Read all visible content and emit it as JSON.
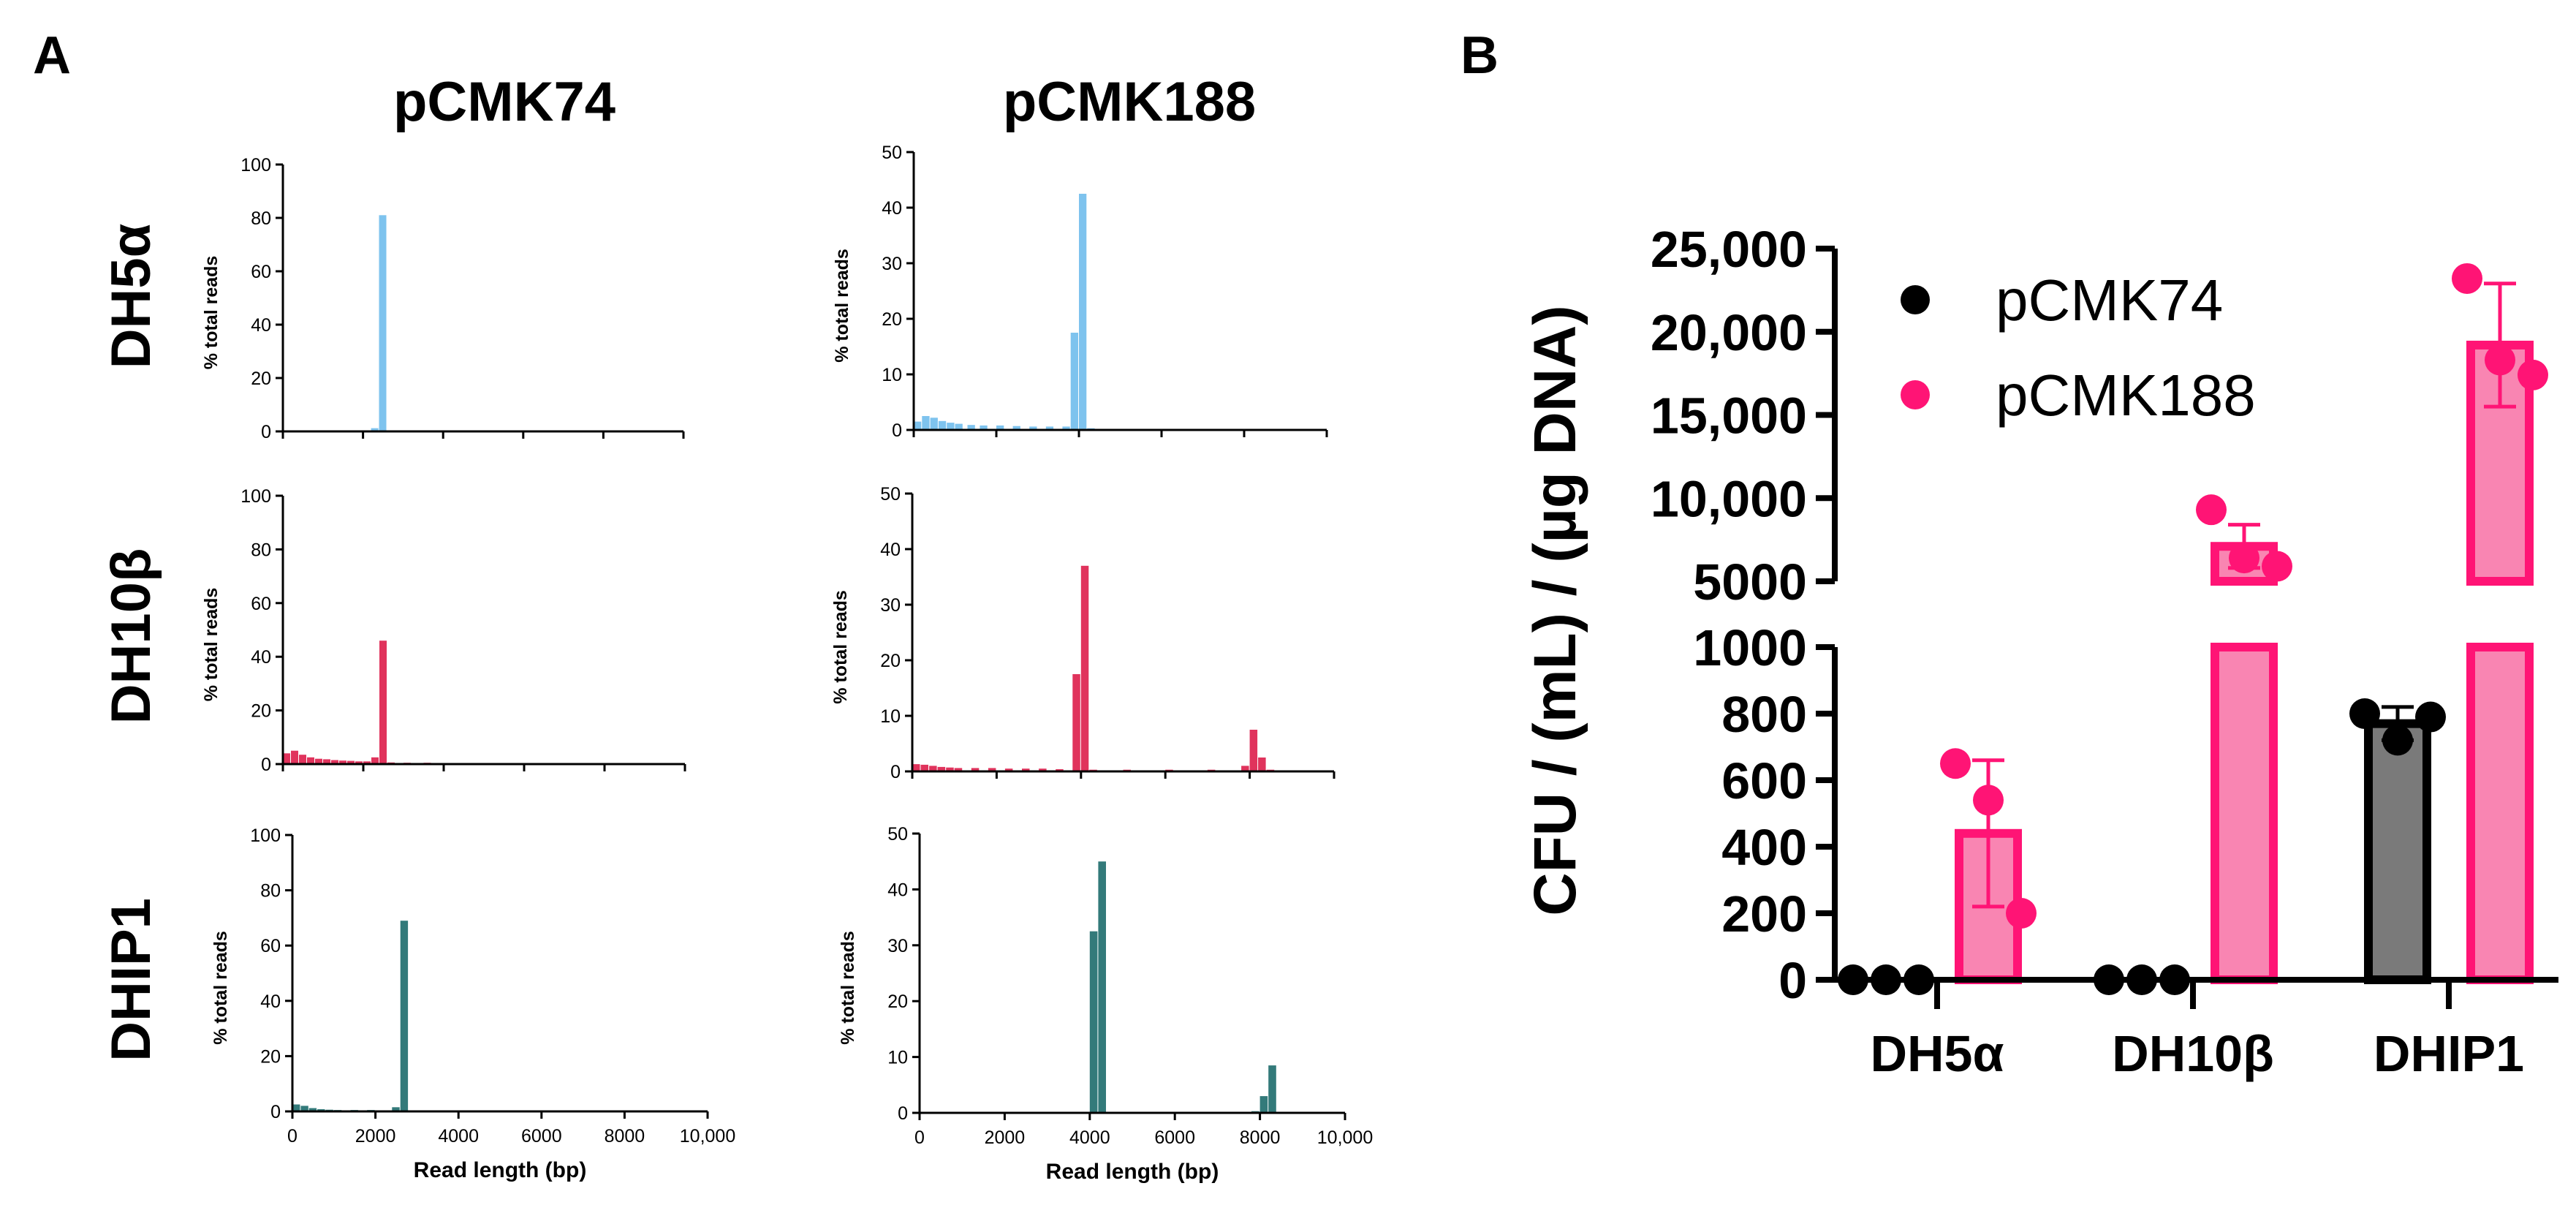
{
  "panel_labels": {
    "a": "A",
    "b": "B"
  },
  "panel_a": {
    "column_titles": [
      "pCMK74",
      "pCMK188"
    ],
    "row_labels": [
      "DH5α",
      "DH10β",
      "DHIP1"
    ],
    "y_axis_label": "% total reads",
    "x_axis_label": "Read length (bp)",
    "x_tick_labels": [
      "0",
      "2000",
      "4000",
      "6000",
      "8000",
      "10,000"
    ]
  },
  "chart_data": [
    {
      "type": "bar",
      "strain": "DH5α",
      "plasmid": "pCMK74",
      "color": "#7EC3EE",
      "xlabel": "",
      "ylabel": "% total reads",
      "xlim": [
        0,
        10000
      ],
      "ylim": [
        0,
        100
      ],
      "yticks": [
        "0",
        "20",
        "40",
        "60",
        "80",
        "100"
      ],
      "bins": [
        [
          0,
          0.3
        ],
        [
          400,
          0.2
        ],
        [
          800,
          0.2
        ],
        [
          1200,
          0.2
        ],
        [
          1600,
          0.2
        ],
        [
          2200,
          1.2
        ],
        [
          2400,
          81
        ],
        [
          2600,
          0.3
        ],
        [
          3000,
          0.2
        ],
        [
          4000,
          0.1
        ],
        [
          5000,
          0.1
        ],
        [
          6000,
          0.1
        ],
        [
          7000,
          0.1
        ],
        [
          8000,
          0.1
        ]
      ]
    },
    {
      "type": "bar",
      "strain": "DH5α",
      "plasmid": "pCMK188",
      "color": "#7EC3EE",
      "xlabel": "",
      "ylabel": "% total reads",
      "xlim": [
        0,
        10000
      ],
      "ylim": [
        0,
        50
      ],
      "yticks": [
        "0",
        "10",
        "20",
        "30",
        "40",
        "50"
      ],
      "bins": [
        [
          0,
          1.5
        ],
        [
          200,
          2.5
        ],
        [
          400,
          2.2
        ],
        [
          600,
          1.6
        ],
        [
          800,
          1.3
        ],
        [
          1000,
          1.1
        ],
        [
          1300,
          0.9
        ],
        [
          1600,
          0.8
        ],
        [
          2000,
          0.8
        ],
        [
          2400,
          0.7
        ],
        [
          2800,
          0.6
        ],
        [
          3200,
          0.6
        ],
        [
          3600,
          0.6
        ],
        [
          3800,
          17.5
        ],
        [
          4000,
          42.5
        ],
        [
          4200,
          0.3
        ],
        [
          5000,
          0.2
        ],
        [
          6000,
          0.2
        ],
        [
          7000,
          0.2
        ],
        [
          8000,
          0.2
        ],
        [
          8800,
          0.1
        ]
      ]
    },
    {
      "type": "bar",
      "strain": "DH10β",
      "plasmid": "pCMK74",
      "color": "#E0335C",
      "xlabel": "",
      "ylabel": "% total reads",
      "xlim": [
        0,
        10000
      ],
      "ylim": [
        0,
        100
      ],
      "yticks": [
        "0",
        "20",
        "40",
        "60",
        "80",
        "100"
      ],
      "bins": [
        [
          0,
          4
        ],
        [
          200,
          5
        ],
        [
          400,
          3.5
        ],
        [
          600,
          2.5
        ],
        [
          800,
          2
        ],
        [
          1000,
          1.8
        ],
        [
          1200,
          1.5
        ],
        [
          1400,
          1.3
        ],
        [
          1600,
          1.2
        ],
        [
          1800,
          1
        ],
        [
          2000,
          1
        ],
        [
          2200,
          2.5
        ],
        [
          2400,
          46
        ],
        [
          2600,
          0.6
        ],
        [
          3000,
          0.5
        ],
        [
          3500,
          0.5
        ],
        [
          4000,
          0.4
        ],
        [
          5000,
          0.4
        ],
        [
          6000,
          0.4
        ],
        [
          7000,
          0.4
        ],
        [
          8000,
          0.2
        ]
      ]
    },
    {
      "type": "bar",
      "strain": "DH10β",
      "plasmid": "pCMK188",
      "color": "#E0335C",
      "xlabel": "",
      "ylabel": "% total reads",
      "xlim": [
        0,
        10000
      ],
      "ylim": [
        0,
        50
      ],
      "yticks": [
        "0",
        "10",
        "20",
        "30",
        "40",
        "50"
      ],
      "bins": [
        [
          0,
          1.3
        ],
        [
          200,
          1.2
        ],
        [
          400,
          1
        ],
        [
          600,
          0.8
        ],
        [
          800,
          0.7
        ],
        [
          1000,
          0.6
        ],
        [
          1400,
          0.6
        ],
        [
          1800,
          0.6
        ],
        [
          2200,
          0.5
        ],
        [
          2600,
          0.5
        ],
        [
          3000,
          0.5
        ],
        [
          3400,
          0.4
        ],
        [
          3800,
          17.5
        ],
        [
          4000,
          37
        ],
        [
          4200,
          0.3
        ],
        [
          5000,
          0.3
        ],
        [
          6000,
          0.3
        ],
        [
          7000,
          0.3
        ],
        [
          7800,
          1
        ],
        [
          8000,
          7.5
        ],
        [
          8200,
          2.5
        ],
        [
          8400,
          0.3
        ],
        [
          9000,
          0.2
        ]
      ]
    },
    {
      "type": "bar",
      "strain": "DHIP1",
      "plasmid": "pCMK74",
      "color": "#337A7A",
      "xlabel": "Read length (bp)",
      "ylabel": "% total reads",
      "xlim": [
        0,
        10000
      ],
      "ylim": [
        0,
        100
      ],
      "yticks": [
        "0",
        "20",
        "40",
        "60",
        "80",
        "100"
      ],
      "bins": [
        [
          0,
          2.5
        ],
        [
          200,
          2
        ],
        [
          400,
          1.2
        ],
        [
          600,
          0.8
        ],
        [
          800,
          0.6
        ],
        [
          1000,
          0.5
        ],
        [
          1400,
          0.5
        ],
        [
          1800,
          0.5
        ],
        [
          2200,
          0.4
        ],
        [
          2400,
          1.5
        ],
        [
          2600,
          69
        ],
        [
          2800,
          0.4
        ],
        [
          3500,
          0.3
        ],
        [
          5000,
          0.3
        ],
        [
          6500,
          0.3
        ],
        [
          8000,
          0.3
        ],
        [
          9000,
          0.2
        ]
      ]
    },
    {
      "type": "bar",
      "strain": "DHIP1",
      "plasmid": "pCMK188",
      "color": "#337A7A",
      "xlabel": "Read length (bp)",
      "ylabel": "% total reads",
      "xlim": [
        0,
        10000
      ],
      "ylim": [
        0,
        50
      ],
      "yticks": [
        "0",
        "10",
        "20",
        "30",
        "40",
        "50"
      ],
      "bins": [
        [
          0,
          0.2
        ],
        [
          1000,
          0.1
        ],
        [
          2000,
          0.1
        ],
        [
          3000,
          0.1
        ],
        [
          3800,
          0.2
        ],
        [
          4000,
          32.5
        ],
        [
          4200,
          45
        ],
        [
          4400,
          0.2
        ],
        [
          5000,
          0.1
        ],
        [
          6000,
          0.1
        ],
        [
          7000,
          0.1
        ],
        [
          7800,
          0.3
        ],
        [
          8000,
          3
        ],
        [
          8200,
          8.5
        ],
        [
          8400,
          0.2
        ],
        [
          9000,
          0.1
        ]
      ]
    },
    {
      "type": "bar",
      "categories": [
        "DH5α",
        "DH10β",
        "DHIP1"
      ],
      "ylabel": "CFU / (mL) / (µg DNA)",
      "y_axis": "broken",
      "lower_ylim": [
        0,
        1000
      ],
      "upper_ylim": [
        5000,
        25000
      ],
      "lower_yticks": [
        "0",
        "200",
        "400",
        "600",
        "800",
        "1000"
      ],
      "upper_yticks": [
        "5000",
        "10,000",
        "15,000",
        "20,000",
        "25,000"
      ],
      "legend_position": "top",
      "series": [
        {
          "name": "pCMK74",
          "bar_color": "#7A7A7A",
          "point_color": "#000000",
          "means": [
            0,
            0,
            770
          ],
          "sd": [
            0,
            0,
            50
          ],
          "points": [
            [
              0,
              0,
              0
            ],
            [
              0,
              0,
              0
            ],
            [
              800,
              720,
              790
            ]
          ]
        },
        {
          "name": "pCMK188",
          "bar_color": "#F985B2",
          "point_color": "#FF1475",
          "means": [
            440,
            7100,
            19200
          ],
          "sd": [
            220,
            1300,
            3700
          ],
          "points": [
            [
              650,
              540,
              200
            ],
            [
              9300,
              6400,
              5900
            ],
            [
              23200,
              18300,
              17400
            ]
          ]
        }
      ]
    }
  ]
}
